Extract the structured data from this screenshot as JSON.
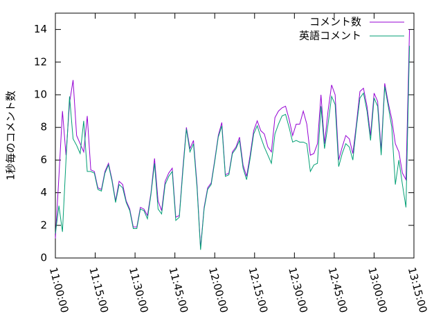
{
  "chart_data": {
    "type": "line",
    "ylabel": "1秒毎のコメント数",
    "xlim": [
      "11:00:00",
      "13:15:00"
    ],
    "xticks": [
      "11:00:00",
      "11:15:00",
      "11:30:00",
      "11:45:00",
      "12:00:00",
      "12:15:00",
      "12:30:00",
      "12:45:00",
      "13:00:00",
      "13:15:00"
    ],
    "ylim": [
      0,
      15
    ],
    "yticks": [
      0,
      2,
      4,
      6,
      8,
      10,
      12,
      14
    ],
    "legend": "top-right",
    "x": [
      "11:00:00",
      "11:01:20",
      "11:02:40",
      "11:04:00",
      "11:05:20",
      "11:06:40",
      "11:08:00",
      "11:09:20",
      "11:10:40",
      "11:12:00",
      "11:13:20",
      "11:14:40",
      "11:16:00",
      "11:17:20",
      "11:18:40",
      "11:20:00",
      "11:21:20",
      "11:22:40",
      "11:24:00",
      "11:25:20",
      "11:26:40",
      "11:28:00",
      "11:29:20",
      "11:30:40",
      "11:32:00",
      "11:33:20",
      "11:34:40",
      "11:36:00",
      "11:37:20",
      "11:38:40",
      "11:40:00",
      "11:41:20",
      "11:42:40",
      "11:44:00",
      "11:45:20",
      "11:46:40",
      "11:48:00",
      "11:49:20",
      "11:50:40",
      "11:52:00",
      "11:53:20",
      "11:54:40",
      "11:56:00",
      "11:57:20",
      "11:58:40",
      "12:00:00",
      "12:01:20",
      "12:02:40",
      "12:04:00",
      "12:05:20",
      "12:06:40",
      "12:08:00",
      "12:09:20",
      "12:10:40",
      "12:12:00",
      "12:13:20",
      "12:14:40",
      "12:16:00",
      "12:17:20",
      "12:18:40",
      "12:20:00",
      "12:21:20",
      "12:22:40",
      "12:24:00",
      "12:25:20",
      "12:26:40",
      "12:28:00",
      "12:29:20",
      "12:30:40",
      "12:32:00",
      "12:33:20",
      "12:34:40",
      "12:36:00",
      "12:37:20",
      "12:38:40",
      "12:40:00",
      "12:41:20",
      "12:42:40",
      "12:44:00",
      "12:45:20",
      "12:46:40",
      "12:48:00",
      "12:49:20",
      "12:50:40",
      "12:52:00",
      "12:53:20",
      "12:54:40",
      "12:56:00",
      "12:57:20",
      "12:58:40",
      "13:00:00",
      "13:01:20",
      "13:02:40",
      "13:04:00",
      "13:05:20",
      "13:06:40",
      "13:08:00",
      "13:09:20",
      "13:10:40",
      "13:12:00",
      "13:13:20"
    ],
    "series": [
      {
        "name": "コメント数",
        "color": "#9400d3",
        "values": [
          1.2,
          5,
          9,
          6.3,
          9.5,
          10.9,
          7.5,
          7,
          6.5,
          8.7,
          5.4,
          5.3,
          4.3,
          4.2,
          5.3,
          5.8,
          4.8,
          3.5,
          4.7,
          4.5,
          3.5,
          3,
          1.9,
          1.9,
          3.1,
          3,
          2.6,
          4,
          6.1,
          3.5,
          2.9,
          4.7,
          5.2,
          5.5,
          2.5,
          2.6,
          5.5,
          8,
          6.7,
          7.2,
          4.5,
          0.6,
          3.1,
          4.3,
          4.6,
          6,
          7.5,
          8.3,
          5.1,
          5.2,
          6.5,
          6.8,
          7.4,
          5.7,
          5,
          6.3,
          7.8,
          8.4,
          7.8,
          7.6,
          6.8,
          6.5,
          8.6,
          9,
          9.2,
          9.3,
          8.5,
          7.5,
          8.2,
          8.2,
          9,
          8.2,
          6.3,
          6.4,
          7,
          10,
          7,
          9,
          10.6,
          10,
          6,
          6.8,
          7.5,
          7.3,
          6.4,
          8.2,
          10.2,
          10.4,
          9.3,
          7.5,
          10.1,
          9.6,
          6.6,
          10.7,
          9.5,
          8.5,
          7,
          6.5,
          5.2,
          4.8,
          14
        ]
      },
      {
        "name": "英語コメント",
        "color": "#009e73",
        "values": [
          1.5,
          3.2,
          1.6,
          6,
          9.9,
          7.3,
          6.9,
          6.4,
          8.4,
          5.3,
          5.3,
          5.2,
          4.2,
          4.1,
          5.2,
          5.7,
          4.7,
          3.4,
          4.5,
          4.3,
          3.4,
          2.9,
          1.8,
          1.8,
          3,
          2.9,
          2.4,
          3.9,
          5.8,
          3,
          2.7,
          4.5,
          5,
          5.3,
          2.3,
          2.5,
          5.3,
          7.9,
          6.5,
          7,
          4.3,
          0.5,
          3,
          4.2,
          4.5,
          5.9,
          7.4,
          8.1,
          5,
          5.1,
          6.4,
          6.7,
          7.2,
          5.5,
          4.8,
          6.1,
          7.6,
          8.1,
          7.4,
          6.8,
          6.3,
          5.8,
          7.6,
          8.2,
          8.7,
          8.8,
          8,
          7.1,
          7.2,
          7.1,
          7.1,
          7,
          5.3,
          5.7,
          5.8,
          9.3,
          6.7,
          8.2,
          9.9,
          9.4,
          5.6,
          6.4,
          7,
          6.8,
          6,
          8,
          9.8,
          10.1,
          9,
          7.2,
          9.8,
          9.3,
          6.3,
          10.5,
          9.3,
          8,
          4.5,
          6,
          4.5,
          3.1,
          13
        ]
      }
    ]
  }
}
